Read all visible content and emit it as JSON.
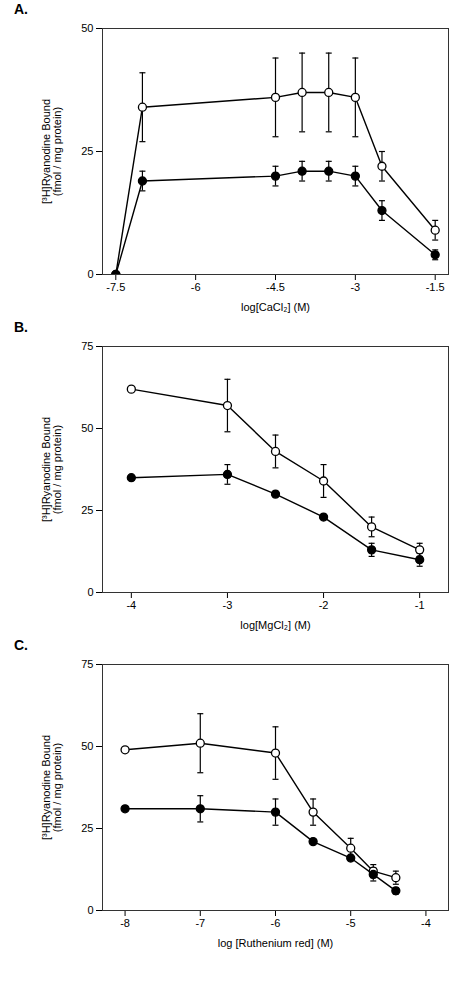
{
  "chart_data": [
    {
      "type": "line",
      "title": "A.",
      "xlabel": "log[CaCl₂] (M)",
      "ylabel": "[³H]Ryanodine Bound\n(fmol / mg protein)",
      "xlim": [
        -7.75,
        -1.25
      ],
      "ylim": [
        0,
        50
      ],
      "xticks": [
        -7.5,
        -6,
        -4.5,
        -3,
        -1.5
      ],
      "yticks": [
        0,
        25,
        50
      ],
      "x": [
        -7.5,
        -7.0,
        -4.5,
        -4.0,
        -3.5,
        -3.0,
        -2.5,
        -1.5
      ],
      "series": [
        {
          "color": "#000000",
          "marker": "open_circle",
          "values": [
            0,
            34,
            36,
            37,
            37,
            36,
            22,
            9
          ],
          "yerr": [
            0,
            7,
            8,
            8,
            8,
            8,
            3,
            2
          ]
        },
        {
          "color": "#000000",
          "marker": "filled_circle",
          "values": [
            0,
            19,
            20,
            21,
            21,
            20,
            13,
            4
          ],
          "yerr": [
            0,
            2,
            2,
            2,
            2,
            2,
            2,
            1
          ]
        }
      ]
    },
    {
      "type": "line",
      "title": "B.",
      "xlabel": "log[MgCl₂] (M)",
      "ylabel": "[³H]Ryanodine Bound\n(fmol / mg protein)",
      "xlim": [
        -4.3,
        -0.7
      ],
      "ylim": [
        0,
        75
      ],
      "xticks": [
        -4,
        -3,
        -2,
        -1
      ],
      "yticks": [
        0,
        25,
        50,
        75
      ],
      "x": [
        -4.0,
        -3.0,
        -2.5,
        -2.0,
        -1.5,
        -1.0
      ],
      "series": [
        {
          "color": "#000000",
          "marker": "open_circle",
          "values": [
            62,
            57,
            43,
            34,
            20,
            13
          ],
          "yerr": [
            0,
            8,
            5,
            5,
            3,
            2
          ]
        },
        {
          "color": "#000000",
          "marker": "filled_circle",
          "values": [
            35,
            36,
            30,
            23,
            13,
            10
          ],
          "yerr": [
            0,
            3,
            0,
            0,
            2,
            2
          ]
        }
      ]
    },
    {
      "type": "line",
      "title": "C.",
      "xlabel": "log [Ruthenium red] (M)",
      "ylabel": "[³H]Ryanodine Bound\n(fmol / mg protein)",
      "xlim": [
        -8.3,
        -3.7
      ],
      "ylim": [
        0,
        75
      ],
      "xticks": [
        -8,
        -7,
        -6,
        -5,
        -4
      ],
      "yticks": [
        0,
        25,
        50,
        75
      ],
      "x": [
        -8.0,
        -7.0,
        -6.0,
        -5.5,
        -5.0,
        -4.7,
        -4.4
      ],
      "series": [
        {
          "color": "#000000",
          "marker": "open_circle",
          "values": [
            49,
            51,
            48,
            30,
            19,
            12,
            10
          ],
          "yerr": [
            0,
            9,
            8,
            4,
            3,
            2,
            2
          ]
        },
        {
          "color": "#000000",
          "marker": "filled_circle",
          "values": [
            31,
            31,
            30,
            21,
            16,
            11,
            6
          ],
          "yerr": [
            0,
            4,
            4,
            0,
            0,
            2,
            1
          ]
        }
      ]
    }
  ]
}
